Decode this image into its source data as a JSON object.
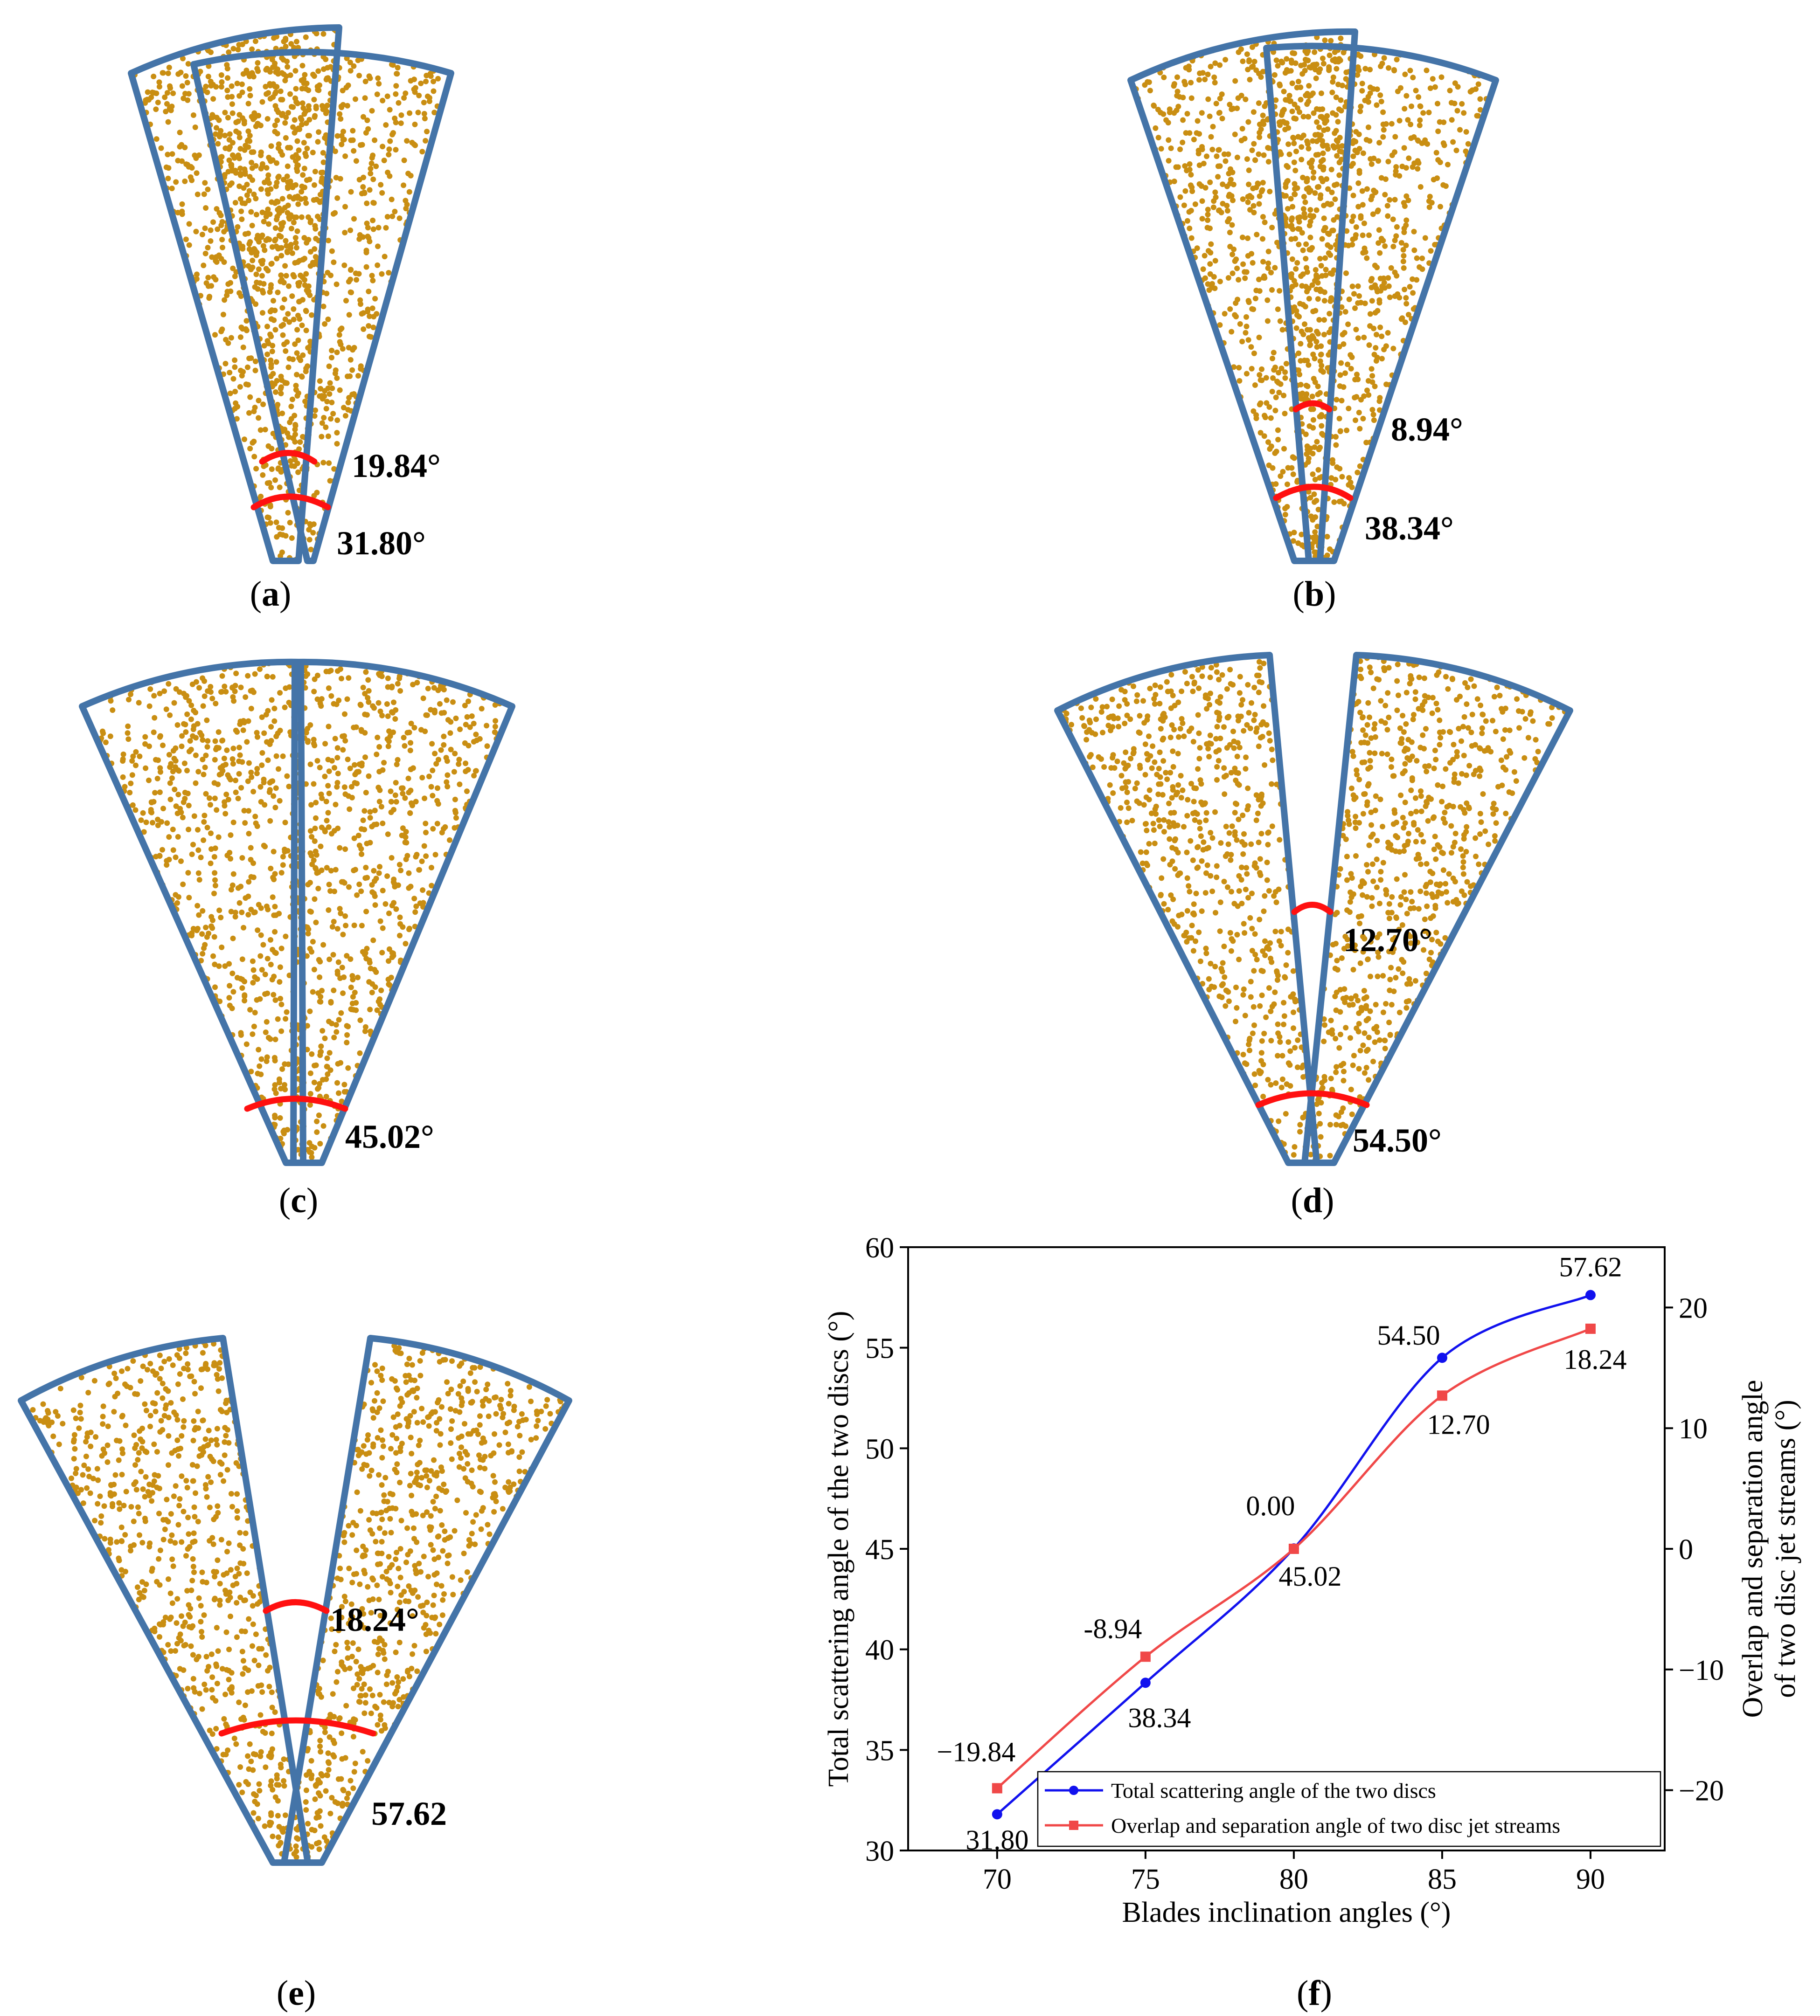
{
  "panels": [
    {
      "id": "a",
      "caption": "a",
      "inner_label": "19.84°",
      "outer_label": "31.80°"
    },
    {
      "id": "b",
      "caption": "b",
      "inner_label": "8.94°",
      "outer_label": "38.34°"
    },
    {
      "id": "c",
      "caption": "c",
      "outer_label": "45.02°"
    },
    {
      "id": "d",
      "caption": "d",
      "inner_label": "12.70°",
      "outer_label": "54.50°"
    },
    {
      "id": "e",
      "caption": "e",
      "inner_label": "18.24°",
      "outer_label": "57.62"
    }
  ],
  "colors": {
    "outline": "#4474A8",
    "dots": "#C98E12",
    "arc": "#FF1010",
    "series_total": "#1111EE",
    "series_overlap": "#F04848"
  },
  "chart_data": {
    "type": "line",
    "caption": "f",
    "xlabel": "Blades inclination angles (°)",
    "ylabel_left": "Total scattering angle of the two discs (°)",
    "ylabel_right_line1": "Overlap and separation angle",
    "ylabel_right_line2": "of two disc jet streams (°)",
    "x": [
      70,
      75,
      80,
      85,
      90
    ],
    "xlim": [
      67,
      92.5
    ],
    "xticks": [
      70,
      75,
      80,
      85,
      90
    ],
    "ylim_left": [
      30,
      60
    ],
    "yticks_left": [
      30,
      35,
      40,
      45,
      50,
      55,
      60
    ],
    "ylim_right": [
      -25,
      25
    ],
    "yticks_right": [
      -20,
      -10,
      0,
      10,
      20
    ],
    "series": [
      {
        "name": "Total scattering angle of the two discs",
        "axis": "left",
        "marker": "circle",
        "values": [
          31.8,
          38.34,
          45.02,
          54.5,
          57.62
        ],
        "labels": [
          "31.80",
          "38.34",
          "45.02",
          "54.50",
          "57.62"
        ]
      },
      {
        "name": "Overlap and separation angle of two disc jet streams",
        "axis": "right",
        "marker": "square",
        "values": [
          -19.84,
          -8.94,
          0.0,
          12.7,
          18.24
        ],
        "labels": [
          "−19.84",
          "-8.94",
          "0.00",
          "12.70",
          "18.24"
        ]
      }
    ],
    "legend": "bottom-right"
  }
}
